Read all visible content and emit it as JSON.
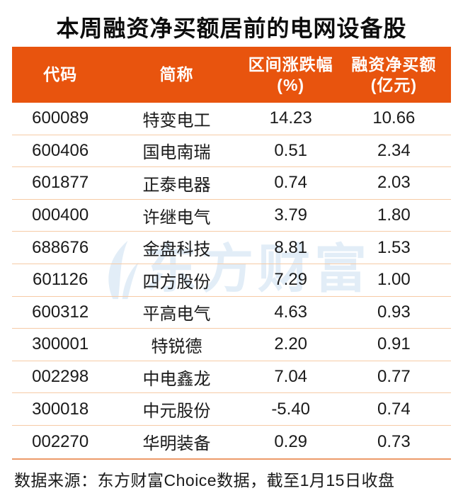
{
  "title": "本周融资净买额居前的电网设备股",
  "watermark": {
    "text": "东方财富",
    "logo": "eastmoney-swoosh-logo"
  },
  "footer": {
    "source_note": "数据来源：东方财富Choice数据，截至1月15日收盘"
  },
  "colors": {
    "header_bg": "#E8540E",
    "row_divider": "#F6CBA6",
    "footer_divider": "#EC9B6A",
    "watermark": "#E2EDF7",
    "title_text": "#0D0D0D",
    "header_text": "#FFFFFF",
    "body_text": "#1A1A1A"
  },
  "table": {
    "columns": [
      {
        "label": "代码",
        "sub": ""
      },
      {
        "label": "简称",
        "sub": ""
      },
      {
        "label": "区间涨跌幅",
        "sub": "(%)"
      },
      {
        "label": "融资净买额",
        "sub": "(亿元)"
      }
    ],
    "rows": [
      {
        "code": "600089",
        "name": "特变电工",
        "change": "14.23",
        "net_buy": "10.66"
      },
      {
        "code": "600406",
        "name": "国电南瑞",
        "change": "0.51",
        "net_buy": "2.34"
      },
      {
        "code": "601877",
        "name": "正泰电器",
        "change": "0.74",
        "net_buy": "2.03"
      },
      {
        "code": "000400",
        "name": "许继电气",
        "change": "3.79",
        "net_buy": "1.80"
      },
      {
        "code": "688676",
        "name": "金盘科技",
        "change": "8.81",
        "net_buy": "1.53"
      },
      {
        "code": "601126",
        "name": "四方股份",
        "change": "7.29",
        "net_buy": "1.00"
      },
      {
        "code": "600312",
        "name": "平高电气",
        "change": "4.63",
        "net_buy": "0.93"
      },
      {
        "code": "300001",
        "name": "特锐德",
        "change": "2.20",
        "net_buy": "0.91"
      },
      {
        "code": "002298",
        "name": "中电鑫龙",
        "change": "7.04",
        "net_buy": "0.77"
      },
      {
        "code": "300018",
        "name": "中元股份",
        "change": "-5.40",
        "net_buy": "0.74"
      },
      {
        "code": "002270",
        "name": "华明装备",
        "change": "0.29",
        "net_buy": "0.73"
      }
    ]
  },
  "chart_data": {
    "type": "table",
    "title": "本周融资净买额居前的电网设备股",
    "columns": [
      "代码",
      "简称",
      "区间涨跌幅(%)",
      "融资净买额(亿元)"
    ],
    "rows": [
      [
        "600089",
        "特变电工",
        14.23,
        10.66
      ],
      [
        "600406",
        "国电南瑞",
        0.51,
        2.34
      ],
      [
        "601877",
        "正泰电器",
        0.74,
        2.03
      ],
      [
        "000400",
        "许继电气",
        3.79,
        1.8
      ],
      [
        "688676",
        "金盘科技",
        8.81,
        1.53
      ],
      [
        "601126",
        "四方股份",
        7.29,
        1.0
      ],
      [
        "600312",
        "平高电气",
        4.63,
        0.93
      ],
      [
        "300001",
        "特锐德",
        2.2,
        0.91
      ],
      [
        "002298",
        "中电鑫龙",
        7.04,
        0.77
      ],
      [
        "300018",
        "中元股份",
        -5.4,
        0.74
      ],
      [
        "002270",
        "华明装备",
        0.29,
        0.73
      ]
    ],
    "source_note": "数据来源：东方财富Choice数据，截至1月15日收盘"
  }
}
